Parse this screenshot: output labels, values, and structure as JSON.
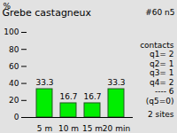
{
  "chart_data": {
    "type": "bar",
    "title": "Grebe castagneux",
    "subtitle": "#60 n5",
    "y_label": "%",
    "categories": [
      "5 m",
      "10 m",
      "15 m",
      "20 min"
    ],
    "values": [
      33.3,
      16.7,
      16.7,
      33.3
    ],
    "color": "#00ee00",
    "ylim": [
      0,
      100
    ],
    "yticks": [
      0,
      20,
      40,
      60,
      80,
      100
    ],
    "grid": false,
    "data_labels": true,
    "annotations": [
      "contacts",
      "q1= 2",
      "q2= 1",
      "q3= 1",
      "q4= 2",
      "---- 6",
      "(q5=0)",
      "2 sites"
    ]
  }
}
